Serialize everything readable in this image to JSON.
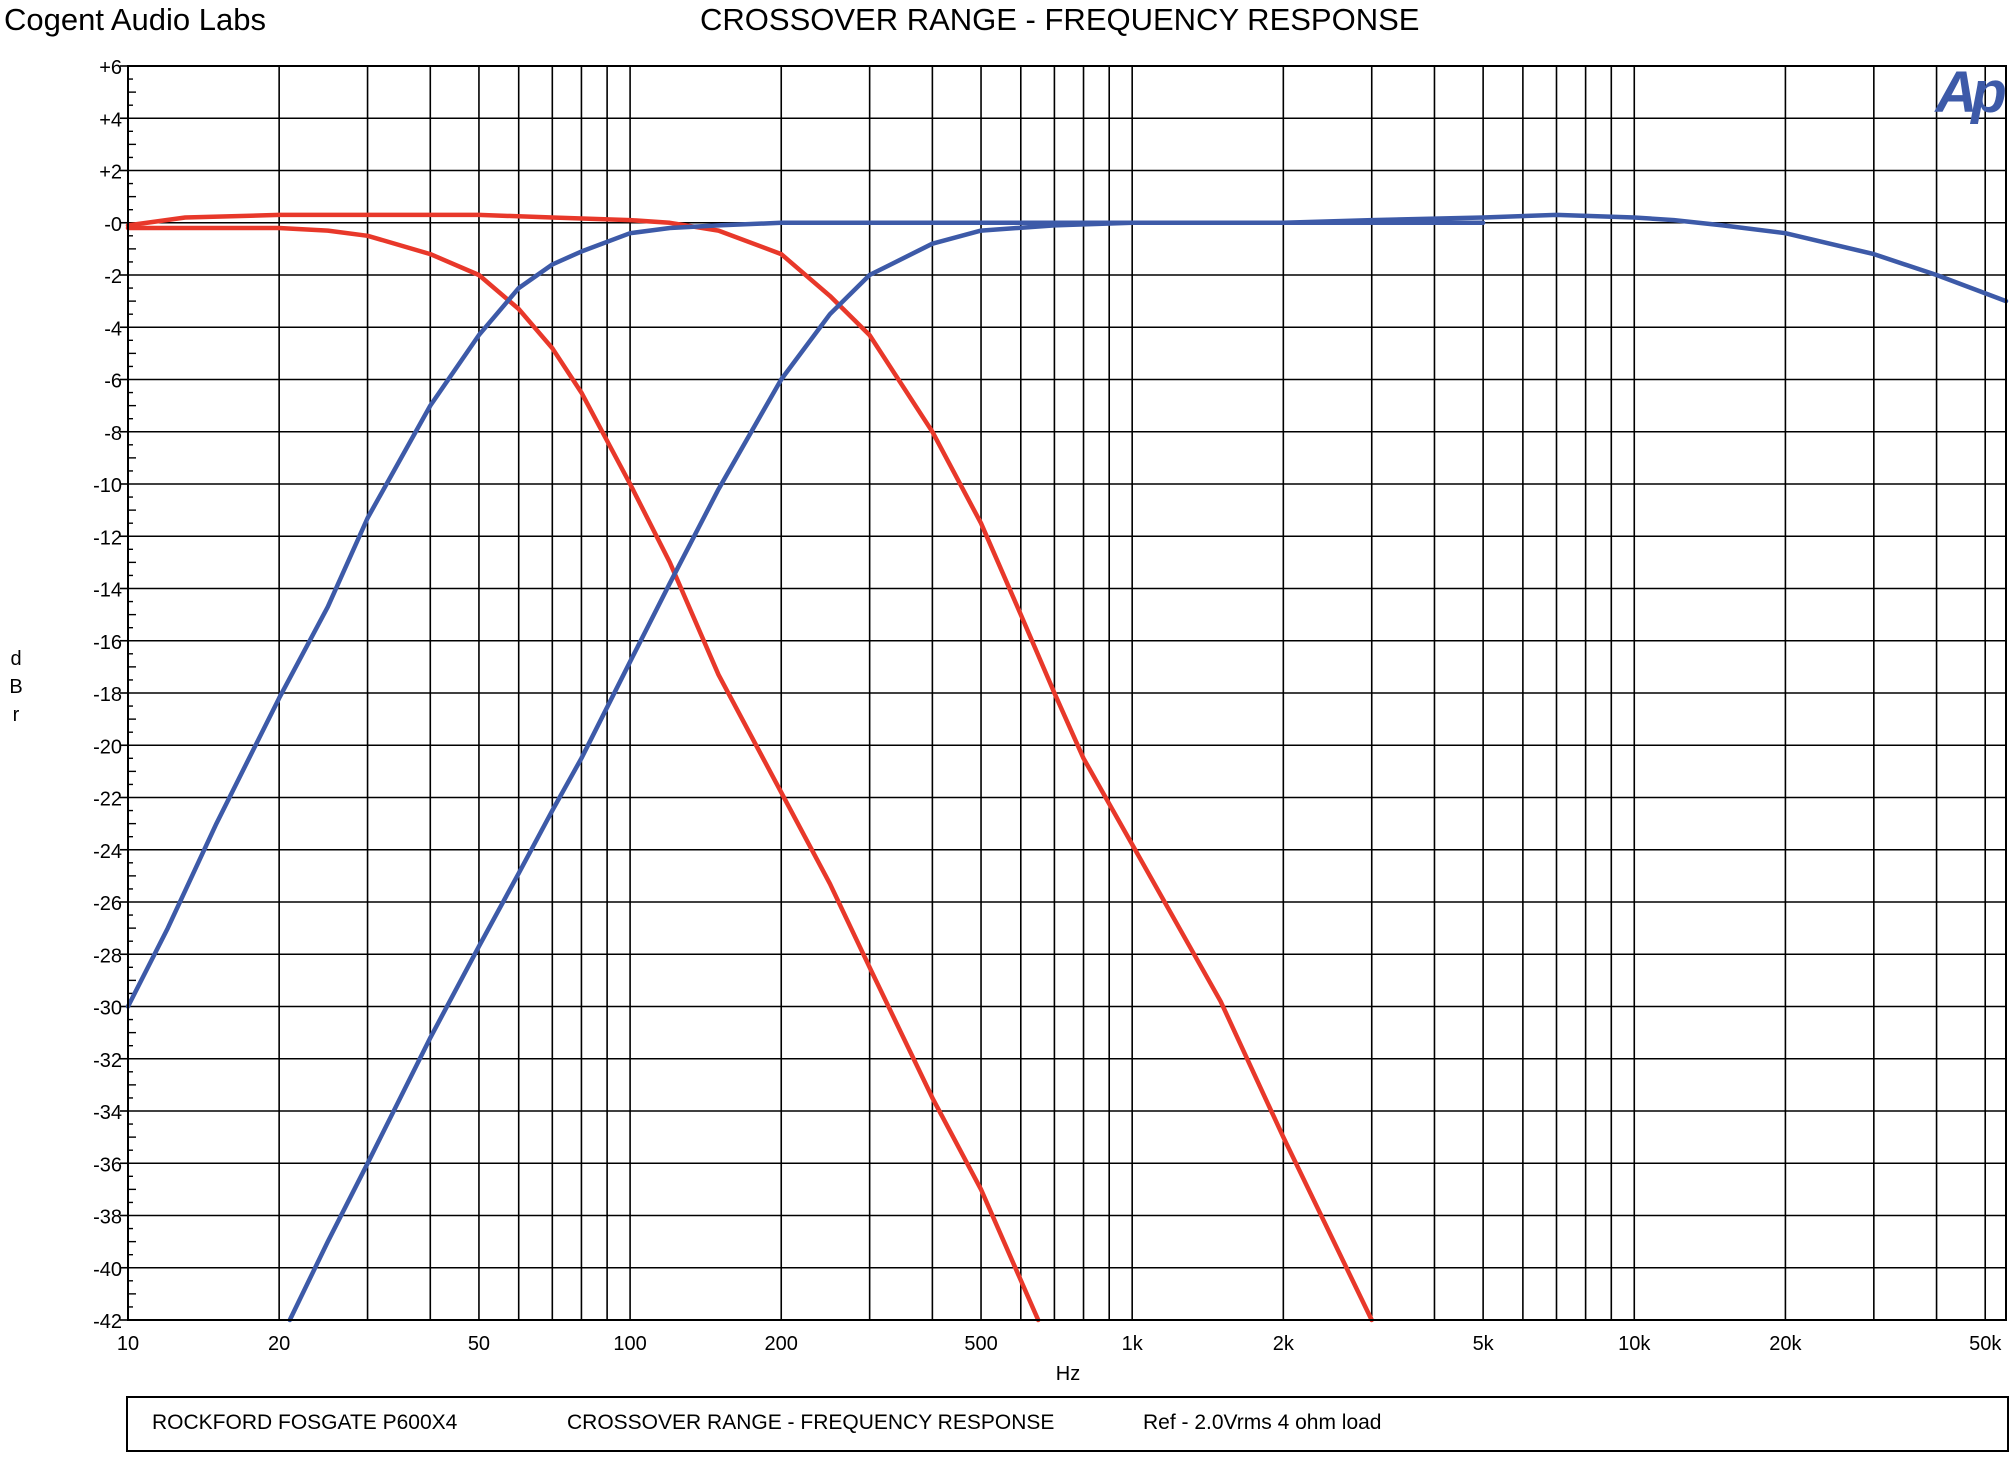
{
  "brand": "Cogent Audio Labs",
  "title": "CROSSOVER RANGE  -  FREQUENCY RESPONSE",
  "logo": "Ap",
  "footer": {
    "model": "ROCKFORD FOSGATE P600X4",
    "title": "CROSSOVER RANGE  -  FREQUENCY RESPONSE",
    "ref": "Ref - 2.0Vrms   4 ohm load"
  },
  "colors": {
    "red_series": "#e8382a",
    "blue_series": "#3d5aa8",
    "logo": "#3d5aa8"
  },
  "chart_data": {
    "type": "line",
    "xlabel": "Hz",
    "ylabel": "dBr",
    "xscale": "log",
    "xlim": [
      10,
      55000
    ],
    "ylim": [
      -42,
      6
    ],
    "grid": true,
    "xticks": [
      {
        "v": 10,
        "label": "10"
      },
      {
        "v": 20,
        "label": "20"
      },
      {
        "v": 50,
        "label": "50"
      },
      {
        "v": 100,
        "label": "100"
      },
      {
        "v": 200,
        "label": "200"
      },
      {
        "v": 500,
        "label": "500"
      },
      {
        "v": 1000,
        "label": "1k"
      },
      {
        "v": 2000,
        "label": "2k"
      },
      {
        "v": 5000,
        "label": "5k"
      },
      {
        "v": 10000,
        "label": "10k"
      },
      {
        "v": 20000,
        "label": "20k"
      },
      {
        "v": 50000,
        "label": "50k"
      }
    ],
    "yticks": [
      {
        "v": 6,
        "label": "+6"
      },
      {
        "v": 4,
        "label": "+4"
      },
      {
        "v": 2,
        "label": "+2"
      },
      {
        "v": 0,
        "label": "-0"
      },
      {
        "v": -2,
        "label": "-2"
      },
      {
        "v": -4,
        "label": "-4"
      },
      {
        "v": -6,
        "label": "-6"
      },
      {
        "v": -8,
        "label": "-8"
      },
      {
        "v": -10,
        "label": "-10"
      },
      {
        "v": -12,
        "label": "-12"
      },
      {
        "v": -14,
        "label": "-14"
      },
      {
        "v": -16,
        "label": "-16"
      },
      {
        "v": -18,
        "label": "-18"
      },
      {
        "v": -20,
        "label": "-20"
      },
      {
        "v": -22,
        "label": "-22"
      },
      {
        "v": -24,
        "label": "-24"
      },
      {
        "v": -26,
        "label": "-26"
      },
      {
        "v": -28,
        "label": "-28"
      },
      {
        "v": -30,
        "label": "-30"
      },
      {
        "v": -32,
        "label": "-32"
      },
      {
        "v": -34,
        "label": "-34"
      },
      {
        "v": -36,
        "label": "-36"
      },
      {
        "v": -38,
        "label": "-38"
      },
      {
        "v": -40,
        "label": "-40"
      },
      {
        "v": -42,
        "label": "-42"
      }
    ],
    "series": [
      {
        "color": "#e8382a",
        "points": [
          [
            10,
            -0.1
          ],
          [
            13,
            0.2
          ],
          [
            20,
            0.3
          ],
          [
            30,
            0.3
          ],
          [
            50,
            0.3
          ],
          [
            70,
            0.2
          ],
          [
            100,
            0.1
          ],
          [
            120,
            0
          ],
          [
            150,
            -0.3
          ],
          [
            200,
            -1.2
          ],
          [
            250,
            -2.8
          ],
          [
            300,
            -4.3
          ],
          [
            400,
            -8
          ],
          [
            500,
            -11.5
          ],
          [
            600,
            -15
          ],
          [
            700,
            -18
          ],
          [
            800,
            -20.5
          ],
          [
            1000,
            -23.8
          ],
          [
            1500,
            -29.8
          ],
          [
            2000,
            -35
          ],
          [
            3000,
            -42
          ]
        ]
      },
      {
        "color": "#e8382a",
        "points": [
          [
            10,
            -0.2
          ],
          [
            20,
            -0.2
          ],
          [
            25,
            -0.3
          ],
          [
            30,
            -0.5
          ],
          [
            40,
            -1.2
          ],
          [
            50,
            -2
          ],
          [
            60,
            -3.3
          ],
          [
            70,
            -4.8
          ],
          [
            80,
            -6.5
          ],
          [
            100,
            -10
          ],
          [
            120,
            -13
          ],
          [
            150,
            -17.3
          ],
          [
            200,
            -21.8
          ],
          [
            250,
            -25.3
          ],
          [
            300,
            -28.5
          ],
          [
            400,
            -33.5
          ],
          [
            500,
            -37
          ],
          [
            650,
            -42
          ]
        ]
      },
      {
        "color": "#3d5aa8",
        "points": [
          [
            10,
            -30
          ],
          [
            12,
            -27
          ],
          [
            15,
            -23
          ],
          [
            20,
            -18.2
          ],
          [
            25,
            -14.7
          ],
          [
            30,
            -11.3
          ],
          [
            40,
            -7
          ],
          [
            50,
            -4.3
          ],
          [
            60,
            -2.5
          ],
          [
            70,
            -1.6
          ],
          [
            80,
            -1.1
          ],
          [
            100,
            -0.4
          ],
          [
            120,
            -0.2
          ],
          [
            150,
            -0.1
          ],
          [
            200,
            0
          ],
          [
            500,
            0
          ],
          [
            1000,
            0
          ],
          [
            2000,
            0
          ],
          [
            3000,
            0.1
          ],
          [
            5000,
            0.2
          ],
          [
            7000,
            0.3
          ],
          [
            10000,
            0.2
          ],
          [
            12000,
            0.1
          ],
          [
            15000,
            -0.1
          ],
          [
            20000,
            -0.4
          ],
          [
            30000,
            -1.2
          ],
          [
            40000,
            -2
          ],
          [
            55000,
            -3
          ]
        ]
      },
      {
        "color": "#3d5aa8",
        "points": [
          [
            21,
            -42
          ],
          [
            25,
            -39
          ],
          [
            30,
            -36
          ],
          [
            40,
            -31.2
          ],
          [
            50,
            -27.7
          ],
          [
            60,
            -24.9
          ],
          [
            70,
            -22.5
          ],
          [
            80,
            -20.5
          ],
          [
            100,
            -16.8
          ],
          [
            120,
            -13.8
          ],
          [
            150,
            -10.2
          ],
          [
            200,
            -6
          ],
          [
            250,
            -3.5
          ],
          [
            300,
            -2
          ],
          [
            400,
            -0.8
          ],
          [
            500,
            -0.3
          ],
          [
            700,
            -0.1
          ],
          [
            1000,
            0
          ],
          [
            5000,
            0
          ]
        ]
      }
    ]
  }
}
